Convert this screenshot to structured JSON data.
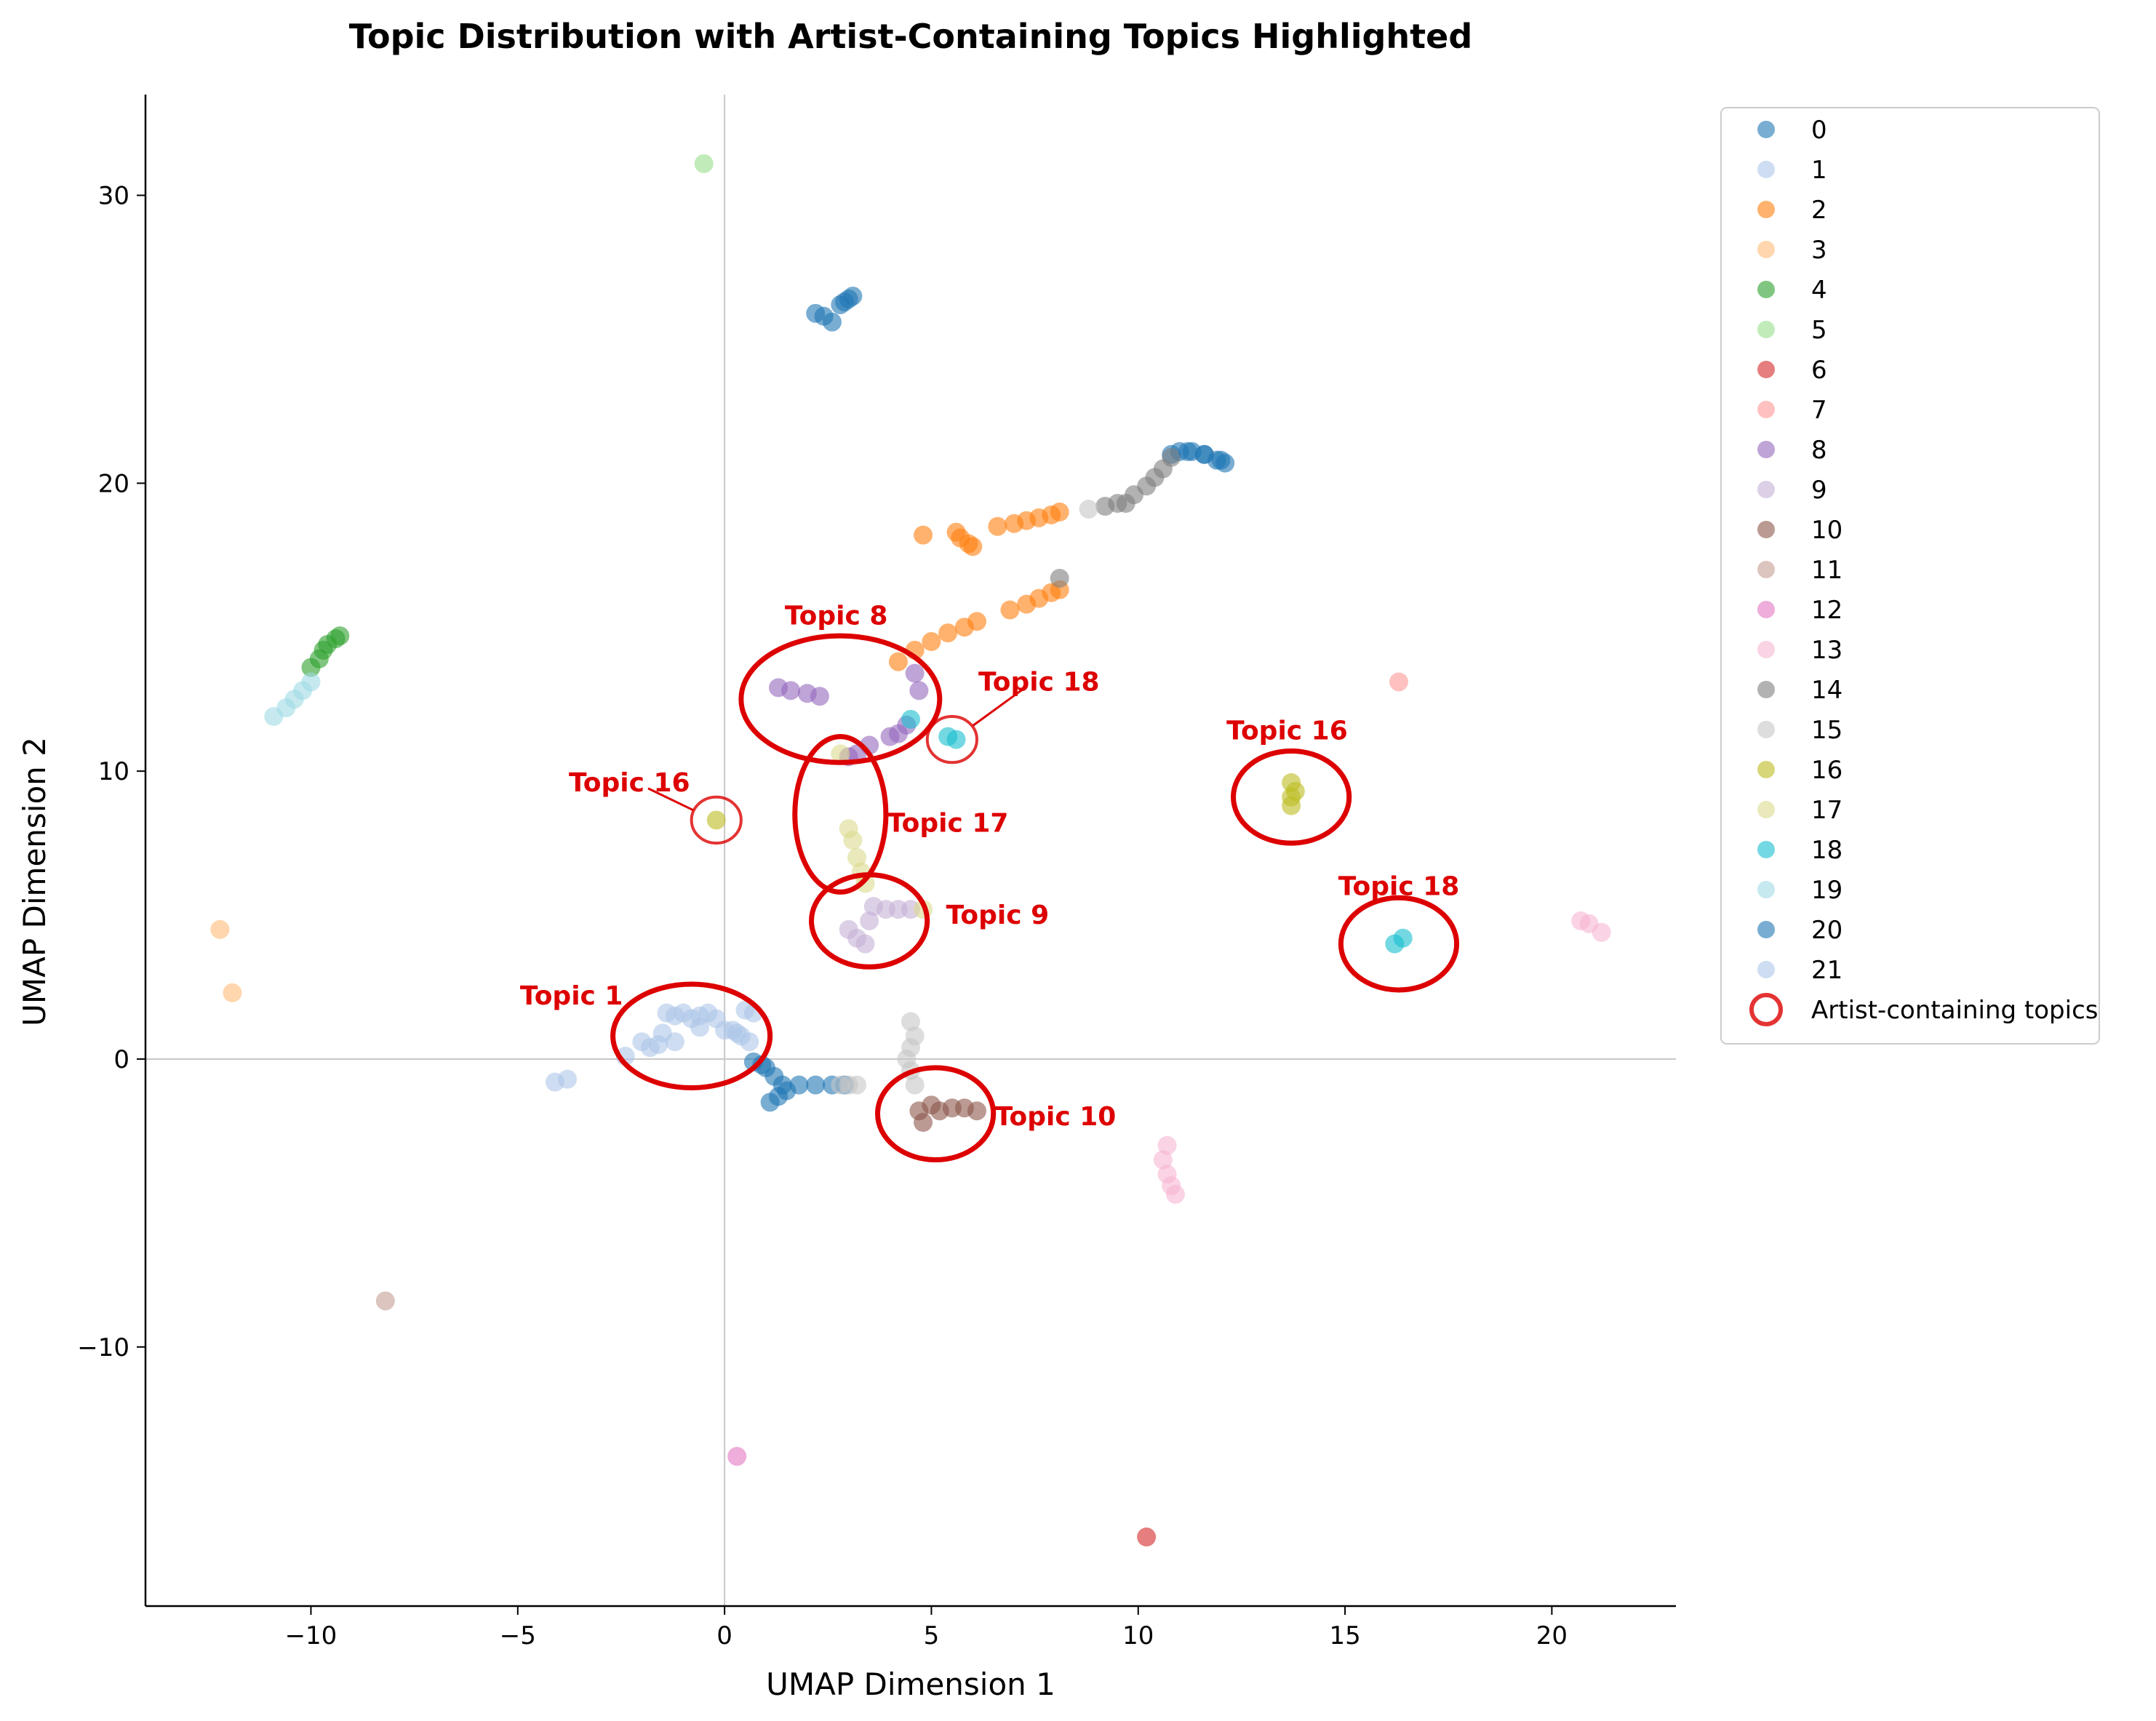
{
  "chart_data": {
    "type": "scatter",
    "title": "Topic Distribution with Artist-Containing Topics Highlighted",
    "xlabel": "UMAP Dimension 1",
    "ylabel": "UMAP Dimension 2",
    "xlim": [
      -14,
      23
    ],
    "ylim": [
      -19,
      33.5
    ],
    "xticks": [
      -10,
      -5,
      0,
      5,
      10,
      15,
      20
    ],
    "yticks": [
      -10,
      0,
      10,
      20,
      30
    ],
    "xtick_labels": [
      "−10",
      "−5",
      "0",
      "5",
      "10",
      "15",
      "20"
    ],
    "ytick_labels": [
      "−10",
      "0",
      "10",
      "20",
      "30"
    ],
    "reference_lines": {
      "x": 0,
      "y": 0
    },
    "grid": false,
    "legend_position": "outside right, top",
    "point_alpha": 0.6,
    "series": [
      {
        "name": "0",
        "color": "#1f77b4",
        "points": [
          [
            2.2,
            25.9
          ],
          [
            2.4,
            25.8
          ],
          [
            2.6,
            25.6
          ],
          [
            2.8,
            26.2
          ],
          [
            3.0,
            26.4
          ],
          [
            3.1,
            26.5
          ],
          [
            2.9,
            26.3
          ],
          [
            10.8,
            21.0
          ],
          [
            11.0,
            21.1
          ],
          [
            11.3,
            21.1
          ],
          [
            11.6,
            21.0
          ],
          [
            11.9,
            20.8
          ],
          [
            12.1,
            20.7
          ],
          [
            1.0,
            -0.3
          ],
          [
            1.2,
            -0.6
          ],
          [
            1.4,
            -0.9
          ],
          [
            1.5,
            -1.1
          ],
          [
            1.3,
            -1.3
          ],
          [
            1.1,
            -1.5
          ],
          [
            1.8,
            -0.9
          ],
          [
            2.2,
            -0.9
          ],
          [
            2.6,
            -0.9
          ],
          [
            2.9,
            -0.9
          ],
          [
            0.7,
            -0.1
          ],
          [
            0.9,
            -0.2
          ]
        ]
      },
      {
        "name": "1",
        "color": "#aec7e8",
        "points": [
          [
            -4.1,
            -0.8
          ],
          [
            -3.8,
            -0.7
          ],
          [
            -2.4,
            0.1
          ],
          [
            -2.0,
            0.6
          ],
          [
            -1.8,
            0.4
          ],
          [
            -1.5,
            0.9
          ],
          [
            -1.2,
            1.5
          ],
          [
            -1.0,
            1.6
          ],
          [
            -0.8,
            1.4
          ],
          [
            -0.6,
            1.5
          ],
          [
            -0.4,
            1.6
          ],
          [
            -0.2,
            1.4
          ],
          [
            0.0,
            1.0
          ],
          [
            0.2,
            1.0
          ],
          [
            0.4,
            0.8
          ],
          [
            0.6,
            0.6
          ],
          [
            0.5,
            1.7
          ],
          [
            0.7,
            1.6
          ],
          [
            -1.4,
            1.6
          ],
          [
            -1.2,
            0.6
          ]
        ]
      },
      {
        "name": "2",
        "color": "#ff7f0e",
        "points": [
          [
            4.2,
            13.8
          ],
          [
            4.6,
            14.2
          ],
          [
            5.0,
            14.5
          ],
          [
            5.4,
            14.8
          ],
          [
            5.8,
            15.0
          ],
          [
            6.1,
            15.2
          ],
          [
            6.9,
            15.6
          ],
          [
            7.3,
            15.8
          ],
          [
            7.6,
            16.0
          ],
          [
            7.9,
            16.2
          ],
          [
            8.1,
            16.3
          ],
          [
            4.8,
            18.2
          ],
          [
            5.7,
            18.1
          ],
          [
            5.9,
            17.9
          ],
          [
            6.0,
            17.8
          ],
          [
            6.6,
            18.5
          ],
          [
            7.0,
            18.6
          ],
          [
            7.3,
            18.7
          ],
          [
            7.6,
            18.8
          ],
          [
            7.9,
            18.9
          ],
          [
            8.1,
            19.0
          ],
          [
            5.6,
            18.3
          ]
        ]
      },
      {
        "name": "3",
        "color": "#ffbb78",
        "points": [
          [
            -12.2,
            4.5
          ],
          [
            -11.9,
            2.3
          ]
        ]
      },
      {
        "name": "4",
        "color": "#2ca02c",
        "points": [
          [
            -10.0,
            13.6
          ],
          [
            -9.8,
            13.9
          ],
          [
            -9.7,
            14.2
          ],
          [
            -9.6,
            14.4
          ],
          [
            -9.4,
            14.6
          ],
          [
            -9.3,
            14.7
          ]
        ]
      },
      {
        "name": "5",
        "color": "#98df8a",
        "points": [
          [
            -0.5,
            31.1
          ]
        ]
      },
      {
        "name": "6",
        "color": "#d62728",
        "points": [
          [
            10.2,
            -16.6
          ]
        ]
      },
      {
        "name": "7",
        "color": "#ff9896",
        "points": [
          [
            16.3,
            13.1
          ]
        ]
      },
      {
        "name": "8",
        "color": "#9467bd",
        "points": [
          [
            1.3,
            12.9
          ],
          [
            1.6,
            12.8
          ],
          [
            2.0,
            12.7
          ],
          [
            2.3,
            12.6
          ],
          [
            4.6,
            13.4
          ],
          [
            4.7,
            12.8
          ],
          [
            4.4,
            11.6
          ],
          [
            4.2,
            11.3
          ],
          [
            4.0,
            11.2
          ],
          [
            3.5,
            10.9
          ],
          [
            3.2,
            10.6
          ],
          [
            3.0,
            10.5
          ]
        ]
      },
      {
        "name": "9",
        "color": "#c5b0d5",
        "points": [
          [
            3.0,
            4.5
          ],
          [
            3.2,
            4.2
          ],
          [
            3.4,
            4.0
          ],
          [
            3.5,
            4.8
          ],
          [
            3.6,
            5.3
          ],
          [
            3.9,
            5.2
          ],
          [
            4.2,
            5.2
          ],
          [
            4.5,
            5.2
          ]
        ]
      },
      {
        "name": "10",
        "color": "#8c564b",
        "points": [
          [
            4.7,
            -1.8
          ],
          [
            4.8,
            -2.2
          ],
          [
            5.0,
            -1.6
          ],
          [
            5.2,
            -1.8
          ],
          [
            5.5,
            -1.7
          ],
          [
            5.8,
            -1.7
          ],
          [
            6.1,
            -1.8
          ]
        ]
      },
      {
        "name": "11",
        "color": "#c49c94",
        "points": [
          [
            -8.2,
            -8.4
          ]
        ]
      },
      {
        "name": "12",
        "color": "#e377c2",
        "points": [
          [
            0.3,
            -13.8
          ]
        ]
      },
      {
        "name": "13",
        "color": "#f7b6d2",
        "points": [
          [
            10.7,
            -3.0
          ],
          [
            10.6,
            -3.5
          ],
          [
            10.7,
            -4.0
          ],
          [
            10.8,
            -4.4
          ],
          [
            10.9,
            -4.7
          ],
          [
            20.7,
            4.8
          ],
          [
            20.9,
            4.7
          ],
          [
            21.2,
            4.4
          ]
        ]
      },
      {
        "name": "14",
        "color": "#7f7f7f",
        "points": [
          [
            8.1,
            16.7
          ],
          [
            9.2,
            19.2
          ],
          [
            9.5,
            19.3
          ],
          [
            9.7,
            19.3
          ],
          [
            9.9,
            19.6
          ],
          [
            10.2,
            19.9
          ],
          [
            10.4,
            20.2
          ],
          [
            10.6,
            20.5
          ],
          [
            10.8,
            20.9
          ]
        ]
      },
      {
        "name": "15",
        "color": "#c7c7c7",
        "points": [
          [
            4.5,
            1.3
          ],
          [
            4.6,
            0.8
          ],
          [
            4.5,
            0.4
          ],
          [
            4.4,
            0.0
          ],
          [
            4.5,
            -0.4
          ],
          [
            4.6,
            -0.9
          ],
          [
            2.8,
            -0.9
          ],
          [
            3.0,
            -0.9
          ],
          [
            3.2,
            -0.9
          ],
          [
            8.8,
            19.1
          ]
        ]
      },
      {
        "name": "16",
        "color": "#bcbd22",
        "points": [
          [
            -0.2,
            8.3
          ],
          [
            13.7,
            8.8
          ],
          [
            13.7,
            9.1
          ],
          [
            13.8,
            9.3
          ],
          [
            13.7,
            9.6
          ]
        ]
      },
      {
        "name": "17",
        "color": "#dbdb8d",
        "points": [
          [
            3.0,
            8.0
          ],
          [
            3.1,
            7.6
          ],
          [
            3.2,
            7.0
          ],
          [
            3.3,
            6.5
          ],
          [
            3.4,
            6.1
          ],
          [
            2.8,
            10.6
          ],
          [
            4.8,
            5.2
          ]
        ]
      },
      {
        "name": "18",
        "color": "#17becf",
        "points": [
          [
            5.4,
            11.2
          ],
          [
            5.6,
            11.1
          ],
          [
            4.5,
            11.8
          ],
          [
            16.2,
            4.0
          ],
          [
            16.4,
            4.2
          ]
        ]
      },
      {
        "name": "19",
        "color": "#9edae5",
        "points": [
          [
            -10.9,
            11.9
          ],
          [
            -10.6,
            12.2
          ],
          [
            -10.4,
            12.5
          ],
          [
            -10.2,
            12.8
          ],
          [
            -10.0,
            13.1
          ]
        ]
      },
      {
        "name": "20",
        "color": "#1f77b4",
        "points": [
          [
            11.2,
            21.1
          ],
          [
            11.6,
            21.0
          ],
          [
            12.0,
            20.8
          ]
        ]
      },
      {
        "name": "21",
        "color": "#aec7e8",
        "points": [
          [
            -1.6,
            0.5
          ],
          [
            -0.6,
            1.1
          ],
          [
            0.3,
            0.9
          ]
        ]
      }
    ],
    "legend_entries": [
      "0",
      "1",
      "2",
      "3",
      "4",
      "5",
      "6",
      "7",
      "8",
      "9",
      "10",
      "11",
      "12",
      "13",
      "14",
      "15",
      "16",
      "17",
      "18",
      "19",
      "20",
      "21"
    ],
    "highlight_legend": "Artist-containing topics",
    "highlight_color": "#dd0000",
    "annotations": [
      {
        "text": "Topic 8",
        "cx": 2.8,
        "cy": 12.5,
        "rx": 2.4,
        "ry": 2.2,
        "style": "thick",
        "label_x": 2.7,
        "label_y": 15.4
      },
      {
        "text": "Topic 18",
        "cx": 5.5,
        "cy": 11.1,
        "rx": 0.6,
        "ry": 0.8,
        "style": "thin",
        "label_x": 7.6,
        "label_y": 13.1,
        "leader": true
      },
      {
        "text": "Topic 16",
        "cx": -0.2,
        "cy": 8.3,
        "rx": 0.6,
        "ry": 0.8,
        "style": "thin",
        "label_x": -2.3,
        "label_y": 9.6,
        "leader": true
      },
      {
        "text": "Topic 17",
        "cx": 2.8,
        "cy": 8.5,
        "rx": 1.1,
        "ry": 2.7,
        "style": "thick",
        "label_x": 5.4,
        "label_y": 8.2
      },
      {
        "text": "Topic 9",
        "cx": 3.5,
        "cy": 4.8,
        "rx": 1.4,
        "ry": 1.6,
        "style": "thick",
        "label_x": 6.6,
        "label_y": 5.0
      },
      {
        "text": "Topic 16",
        "cx": 13.7,
        "cy": 9.1,
        "rx": 1.4,
        "ry": 1.6,
        "style": "thick",
        "label_x": 13.6,
        "label_y": 11.4
      },
      {
        "text": "Topic 18",
        "cx": 16.3,
        "cy": 4.0,
        "rx": 1.4,
        "ry": 1.6,
        "style": "thick",
        "label_x": 16.3,
        "label_y": 6.0
      },
      {
        "text": "Topic 1",
        "cx": -0.8,
        "cy": 0.8,
        "rx": 1.9,
        "ry": 1.8,
        "style": "thick",
        "label_x": -3.7,
        "label_y": 2.2
      },
      {
        "text": "Topic 10",
        "cx": 5.1,
        "cy": -1.9,
        "rx": 1.4,
        "ry": 1.6,
        "style": "thick",
        "label_x": 8.0,
        "label_y": -2.0
      }
    ]
  }
}
